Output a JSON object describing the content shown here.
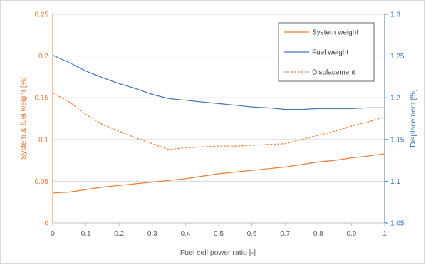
{
  "chart_data": {
    "type": "line",
    "xlabel": "Fuel cell power ratio [-]",
    "ylabel": "System & fuel weight [%]",
    "y2label": "Displacement [%]",
    "xlim": [
      0,
      1
    ],
    "ylim": [
      0,
      0.25
    ],
    "y2lim": [
      1.05,
      1.3
    ],
    "x_ticks": [
      "0",
      "0.1",
      "0.2",
      "0.3",
      "0.4",
      "0.5",
      "0.6",
      "0.7",
      "0.8",
      "0.9",
      "1"
    ],
    "y_ticks": [
      "0",
      "0.05",
      "0.1",
      "0.15",
      "0.2",
      "0.25"
    ],
    "y2_ticks": [
      "1.05",
      "1.1",
      "1.15",
      "1.2",
      "1.25",
      "1.3"
    ],
    "grid": "horizontal",
    "legend_position": "top-right",
    "series": [
      {
        "name": "System weight",
        "axis": "left",
        "color": "#ed7d31",
        "style": "solid",
        "x": [
          0,
          0.05,
          0.1,
          0.15,
          0.2,
          0.25,
          0.3,
          0.35,
          0.4,
          0.45,
          0.5,
          0.55,
          0.6,
          0.65,
          0.7,
          0.75,
          0.8,
          0.85,
          0.9,
          0.95,
          1
        ],
        "y": [
          0.036,
          0.037,
          0.04,
          0.043,
          0.045,
          0.047,
          0.049,
          0.051,
          0.053,
          0.056,
          0.059,
          0.061,
          0.063,
          0.065,
          0.067,
          0.07,
          0.073,
          0.075,
          0.078,
          0.08,
          0.083
        ]
      },
      {
        "name": "Fuel weight",
        "axis": "left",
        "color": "#4472c4",
        "style": "solid",
        "x": [
          0,
          0.05,
          0.1,
          0.15,
          0.2,
          0.25,
          0.3,
          0.35,
          0.4,
          0.45,
          0.5,
          0.55,
          0.6,
          0.65,
          0.7,
          0.75,
          0.8,
          0.85,
          0.9,
          0.95,
          1
        ],
        "y": [
          0.201,
          0.192,
          0.182,
          0.174,
          0.167,
          0.161,
          0.154,
          0.149,
          0.147,
          0.145,
          0.143,
          0.141,
          0.139,
          0.138,
          0.136,
          0.136,
          0.137,
          0.137,
          0.137,
          0.138,
          0.138
        ]
      },
      {
        "name": "Displacement",
        "axis": "right",
        "color": "#ed7d31",
        "style": "dashed",
        "x": [
          0,
          0.05,
          0.1,
          0.15,
          0.2,
          0.25,
          0.3,
          0.35,
          0.4,
          0.45,
          0.5,
          0.55,
          0.6,
          0.65,
          0.7,
          0.75,
          0.8,
          0.85,
          0.9,
          0.95,
          1
        ],
        "y": [
          1.206,
          1.195,
          1.18,
          1.168,
          1.16,
          1.152,
          1.145,
          1.138,
          1.14,
          1.141,
          1.142,
          1.142,
          1.143,
          1.144,
          1.145,
          1.15,
          1.155,
          1.16,
          1.166,
          1.171,
          1.177
        ]
      }
    ]
  }
}
